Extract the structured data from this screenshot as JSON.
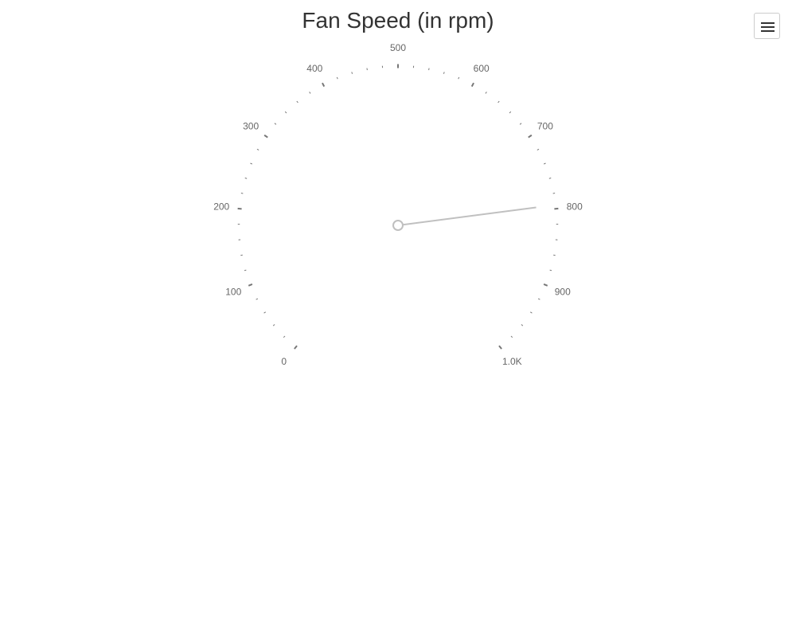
{
  "title": "Fan Speed (in rpm)",
  "menu": {
    "icon": "hamburger-menu-icon"
  },
  "colors": {
    "needle": "#c0c0c0",
    "ticks": "#777777",
    "labels": "#666666",
    "title": "#333333"
  },
  "chart_data": {
    "type": "gauge",
    "title": "Fan Speed (in rpm)",
    "min": 0,
    "max": 1000,
    "major_tick_interval": 100,
    "minor_ticks_per_major": 5,
    "tick_labels": [
      "0",
      "100",
      "200",
      "300",
      "400",
      "500",
      "600",
      "700",
      "800",
      "900",
      "1.0K"
    ],
    "value": 795
  }
}
